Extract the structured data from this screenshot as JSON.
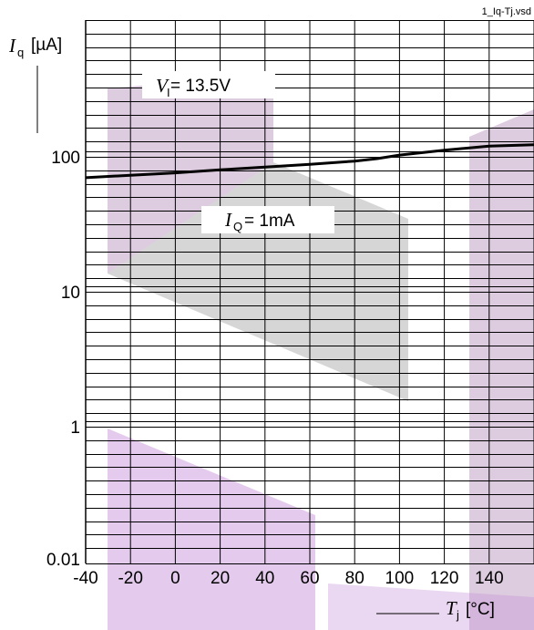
{
  "chart_data": {
    "type": "line",
    "filename": "1_Iq-Tj.vsd",
    "x_label": {
      "symbol": "T",
      "sub": "j",
      "unit": "[°C]"
    },
    "y_label": {
      "symbol": "I",
      "sub": "q",
      "unit": "[µA]"
    },
    "x_ticks": [
      "-40",
      "-20",
      "0",
      "20",
      "40",
      "60",
      "80",
      "100",
      "120",
      "140"
    ],
    "y_tick_labels": [
      "0.01",
      "1",
      "10",
      "100"
    ],
    "xlim": [
      -40,
      160
    ],
    "annotations": [
      {
        "symbol": "V",
        "sub": "I",
        "text": " = 13.5V"
      },
      {
        "symbol": "I",
        "sub": "Q",
        "text": " = 1mA"
      }
    ],
    "series": [
      {
        "x": [
          -40,
          -20,
          0,
          20,
          40,
          60,
          80,
          90,
          100,
          120,
          140,
          160
        ],
        "y": [
          70,
          73,
          76,
          80,
          84,
          88,
          93,
          97,
          103,
          112,
          120,
          123
        ]
      }
    ],
    "colors": {
      "line": "#000000",
      "watermark_a": "#b48cb7",
      "watermark_b": "#8a8a8a",
      "watermark_c": "#c38bd6"
    }
  }
}
